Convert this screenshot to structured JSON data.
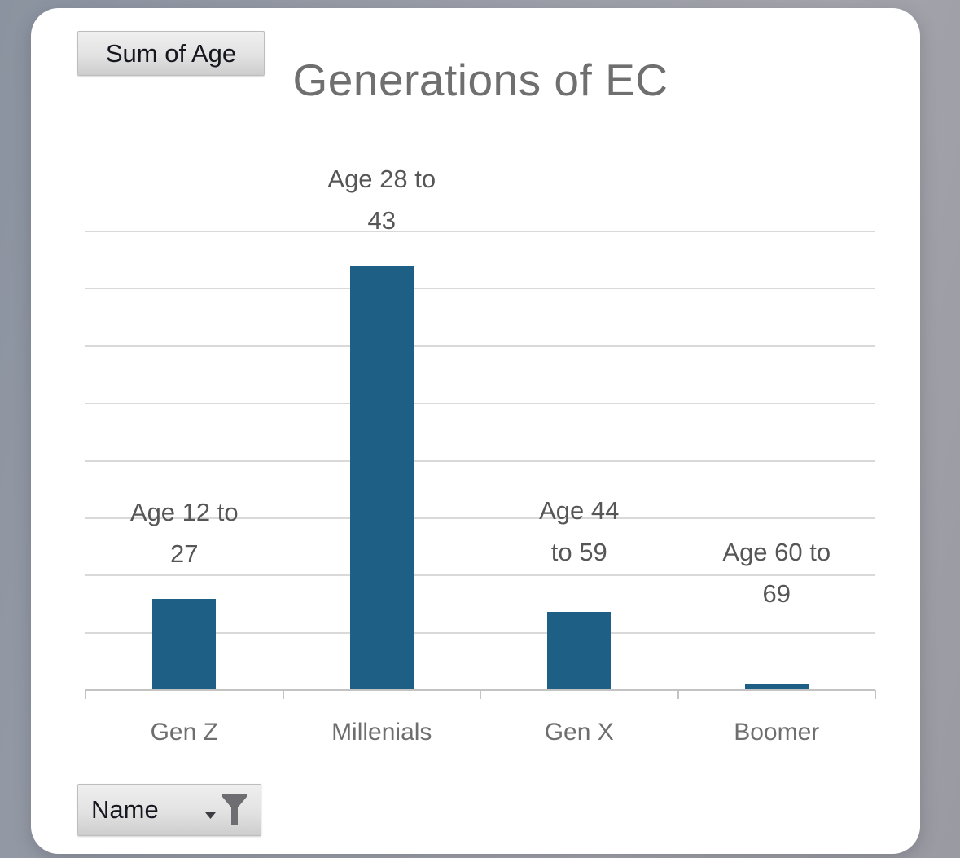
{
  "pivot_chart": {
    "value_field_button": {
      "label": "Sum of Age"
    },
    "axis_field_button": {
      "label": "Name",
      "icons": [
        "caret-down-icon",
        "filter-funnel-icon"
      ]
    }
  },
  "chart_data": {
    "type": "bar",
    "title": "Generations of EC",
    "series_name": "Sum of Age",
    "categories": [
      "Gen Z",
      "Millenials",
      "Gen X",
      "Boomer"
    ],
    "values": [
      158,
      737,
      135,
      9
    ],
    "data_labels": [
      [
        "Age 12 to",
        "27"
      ],
      [
        "Age 28 to",
        "43"
      ],
      [
        "Age 44",
        "to 59"
      ],
      [
        "Age 60 to",
        "69"
      ]
    ],
    "xlabel": "",
    "ylabel": "",
    "ylim": [
      0,
      800
    ],
    "gridline_step": 100,
    "y_axis_tick_labels_visible": false,
    "grid": true,
    "legend": "none",
    "bar_color": "#1d5f85",
    "gridline_color": "#d9d9d9",
    "axis_color": "#c3c3c3",
    "title_color": "#6f6f6f",
    "label_color": "#565656"
  }
}
